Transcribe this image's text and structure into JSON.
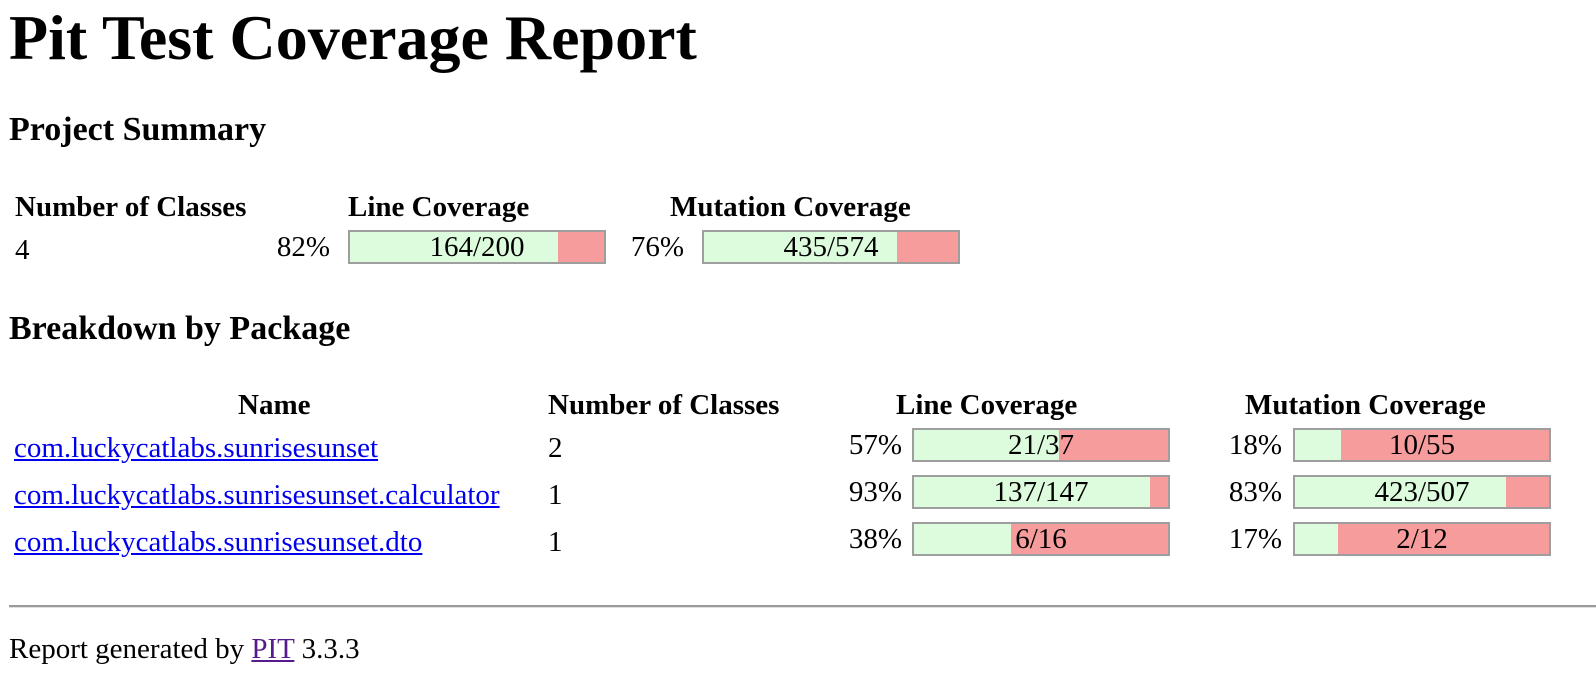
{
  "title": "Pit Test Coverage Report",
  "project_summary": {
    "heading": "Project Summary",
    "headers": {
      "classes": "Number of Classes",
      "line": "Line Coverage",
      "mutation": "Mutation Coverage"
    },
    "classes": "4",
    "line_pct": "82%",
    "line_ratio": "164/200",
    "line_fraction": 0.82,
    "mutation_pct": "76%",
    "mutation_ratio": "435/574",
    "mutation_fraction": 0.76
  },
  "breakdown": {
    "heading": "Breakdown by Package",
    "headers": {
      "name": "Name",
      "classes": "Number of Classes",
      "line": "Line Coverage",
      "mutation": "Mutation Coverage"
    },
    "rows": [
      {
        "name": "com.luckycatlabs.sunrisesunset",
        "classes": "2",
        "line_pct": "57%",
        "line_ratio": "21/37",
        "line_fraction": 0.57,
        "mutation_pct": "18%",
        "mutation_ratio": "10/55",
        "mutation_fraction": 0.18
      },
      {
        "name": "com.luckycatlabs.sunrisesunset.calculator",
        "classes": "1",
        "line_pct": "93%",
        "line_ratio": "137/147",
        "line_fraction": 0.93,
        "mutation_pct": "83%",
        "mutation_ratio": "423/507",
        "mutation_fraction": 0.83
      },
      {
        "name": "com.luckycatlabs.sunrisesunset.dto",
        "classes": "1",
        "line_pct": "38%",
        "line_ratio": "6/16",
        "line_fraction": 0.38,
        "mutation_pct": "17%",
        "mutation_ratio": "2/12",
        "mutation_fraction": 0.17
      }
    ]
  },
  "footer": {
    "prefix": "Report generated by",
    "link": "PIT",
    "version": "3.3.3"
  },
  "colors": {
    "covered": "#ddfcdd",
    "uncovered": "#f79c9c",
    "link": "#0000ee",
    "visited_link": "#551a8b"
  }
}
